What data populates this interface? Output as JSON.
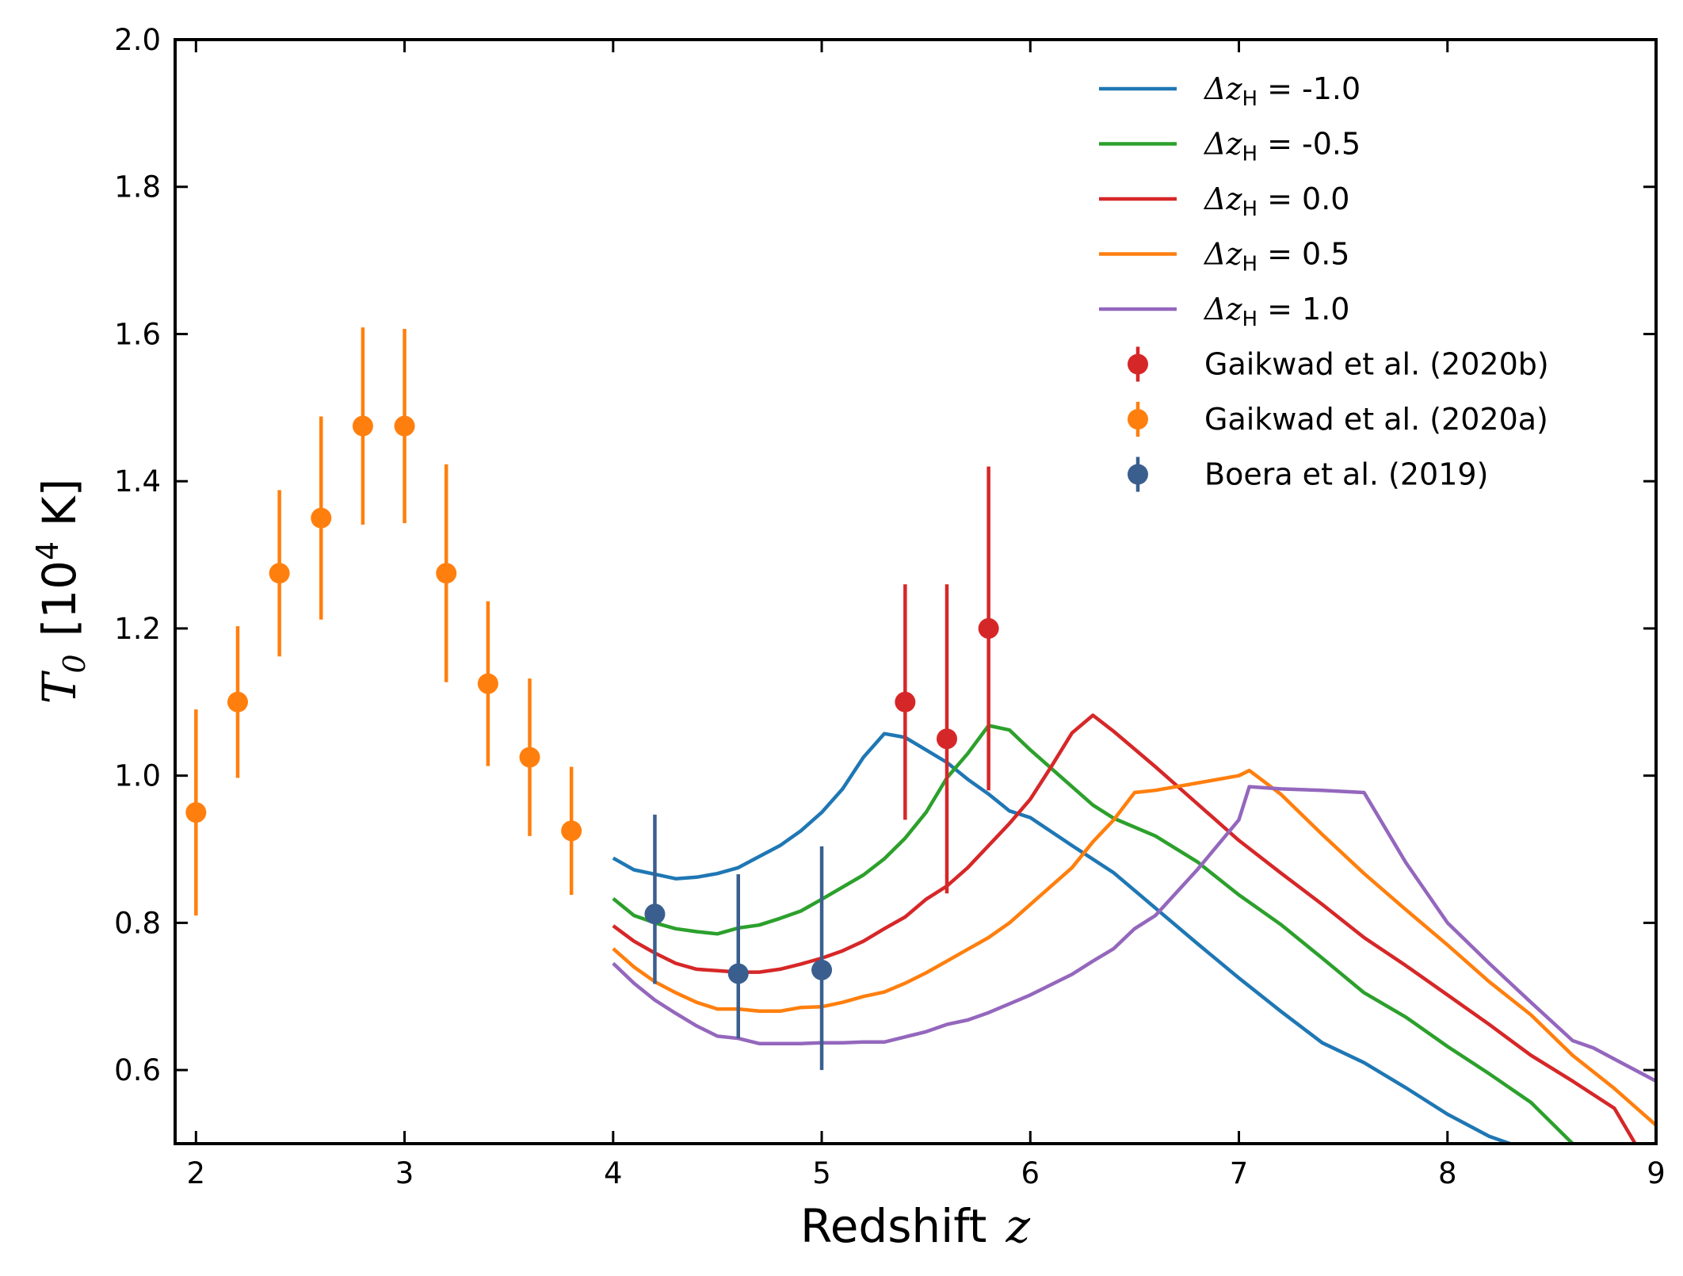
{
  "chart_data": {
    "type": "line",
    "xlabel": "Redshift",
    "xlabel_math": "z",
    "ylabel_math": "T",
    "ylabel_sub": "0",
    "ylabel_unit": "[10",
    "ylabel_exp": "4",
    "ylabel_unit_end": " K]",
    "xlim": [
      1.9,
      9
    ],
    "ylim": [
      0.5,
      2.0
    ],
    "xticks": [
      "2",
      "3",
      "4",
      "5",
      "6",
      "7",
      "8",
      "9"
    ],
    "yticks": [
      "0.6",
      "0.8",
      "1.0",
      "1.2",
      "1.4",
      "1.6",
      "1.8",
      "2.0"
    ],
    "grid": false,
    "legend_position": "top-right",
    "legend_prefix": "Δz",
    "legend_prefix_sub": "H",
    "series": [
      {
        "name": "-1.0",
        "color": "#1f77b4",
        "x": [
          4.0,
          4.1,
          4.2,
          4.3,
          4.4,
          4.5,
          4.6,
          4.7,
          4.8,
          4.9,
          5.0,
          5.1,
          5.2,
          5.3,
          5.4,
          5.5,
          5.6,
          5.7,
          5.8,
          5.9,
          6.0,
          6.2,
          6.4,
          6.6,
          6.8,
          7.0,
          7.2,
          7.4,
          7.6,
          7.8,
          8.0,
          8.2,
          8.3
        ],
        "y": [
          0.888,
          0.872,
          0.866,
          0.86,
          0.862,
          0.867,
          0.875,
          0.89,
          0.905,
          0.925,
          0.95,
          0.982,
          1.025,
          1.057,
          1.052,
          1.035,
          1.018,
          0.995,
          0.975,
          0.952,
          0.943,
          0.905,
          0.868,
          0.82,
          0.772,
          0.725,
          0.68,
          0.637,
          0.61,
          0.576,
          0.54,
          0.51,
          0.5
        ]
      },
      {
        "name": "-0.5",
        "color": "#2ca02c",
        "x": [
          4.0,
          4.1,
          4.2,
          4.3,
          4.4,
          4.5,
          4.6,
          4.7,
          4.8,
          4.9,
          5.0,
          5.2,
          5.3,
          5.4,
          5.5,
          5.6,
          5.7,
          5.8,
          5.9,
          6.0,
          6.2,
          6.3,
          6.4,
          6.6,
          6.8,
          7.0,
          7.2,
          7.4,
          7.6,
          7.8,
          8.0,
          8.2,
          8.4,
          8.6
        ],
        "y": [
          0.833,
          0.81,
          0.8,
          0.792,
          0.788,
          0.785,
          0.793,
          0.797,
          0.806,
          0.816,
          0.832,
          0.865,
          0.887,
          0.915,
          0.95,
          0.997,
          1.03,
          1.068,
          1.062,
          1.035,
          0.985,
          0.96,
          0.942,
          0.918,
          0.883,
          0.838,
          0.798,
          0.752,
          0.705,
          0.672,
          0.632,
          0.595,
          0.556,
          0.5
        ]
      },
      {
        "name": "0.0",
        "color": "#d62728",
        "x": [
          4.0,
          4.1,
          4.2,
          4.3,
          4.4,
          4.5,
          4.6,
          4.7,
          4.8,
          4.9,
          5.0,
          5.1,
          5.2,
          5.3,
          5.4,
          5.5,
          5.6,
          5.7,
          5.8,
          5.9,
          6.0,
          6.1,
          6.2,
          6.3,
          6.4,
          6.6,
          6.8,
          7.0,
          7.2,
          7.4,
          7.6,
          7.8,
          8.0,
          8.2,
          8.4,
          8.6,
          8.8,
          8.9
        ],
        "y": [
          0.796,
          0.775,
          0.759,
          0.745,
          0.737,
          0.735,
          0.733,
          0.733,
          0.737,
          0.744,
          0.752,
          0.762,
          0.775,
          0.792,
          0.808,
          0.832,
          0.85,
          0.875,
          0.905,
          0.935,
          0.968,
          1.012,
          1.058,
          1.082,
          1.06,
          1.012,
          0.962,
          0.912,
          0.868,
          0.825,
          0.78,
          0.742,
          0.702,
          0.662,
          0.62,
          0.585,
          0.548,
          0.5
        ]
      },
      {
        "name": "0.5",
        "color": "#ff7f0e",
        "x": [
          4.0,
          4.1,
          4.2,
          4.3,
          4.4,
          4.5,
          4.6,
          4.7,
          4.8,
          4.9,
          5.0,
          5.1,
          5.2,
          5.3,
          5.4,
          5.5,
          5.6,
          5.7,
          5.8,
          5.9,
          6.0,
          6.2,
          6.3,
          6.4,
          6.5,
          6.6,
          6.8,
          7.0,
          7.05,
          7.2,
          7.4,
          7.6,
          7.8,
          8.0,
          8.2,
          8.4,
          8.6,
          8.8,
          9.0
        ],
        "y": [
          0.765,
          0.74,
          0.72,
          0.705,
          0.692,
          0.683,
          0.683,
          0.68,
          0.68,
          0.685,
          0.686,
          0.692,
          0.7,
          0.706,
          0.718,
          0.732,
          0.748,
          0.764,
          0.78,
          0.8,
          0.825,
          0.875,
          0.91,
          0.94,
          0.977,
          0.98,
          0.99,
          1.0,
          1.007,
          0.975,
          0.92,
          0.867,
          0.818,
          0.77,
          0.72,
          0.675,
          0.62,
          0.575,
          0.525
        ]
      },
      {
        "name": "1.0",
        "color": "#9467bd",
        "x": [
          4.0,
          4.1,
          4.2,
          4.3,
          4.4,
          4.5,
          4.6,
          4.7,
          4.8,
          4.9,
          5.0,
          5.1,
          5.2,
          5.3,
          5.4,
          5.5,
          5.6,
          5.7,
          5.8,
          5.9,
          6.0,
          6.2,
          6.3,
          6.4,
          6.5,
          6.6,
          6.8,
          7.0,
          7.05,
          7.2,
          7.4,
          7.6,
          7.8,
          8.0,
          8.2,
          8.4,
          8.6,
          8.7,
          9.0
        ],
        "y": [
          0.745,
          0.718,
          0.695,
          0.677,
          0.66,
          0.646,
          0.643,
          0.636,
          0.636,
          0.636,
          0.637,
          0.637,
          0.638,
          0.638,
          0.645,
          0.652,
          0.662,
          0.668,
          0.678,
          0.69,
          0.702,
          0.73,
          0.748,
          0.765,
          0.792,
          0.81,
          0.872,
          0.94,
          0.985,
          0.982,
          0.98,
          0.977,
          0.882,
          0.8,
          0.745,
          0.692,
          0.64,
          0.63,
          0.585
        ]
      }
    ],
    "data_series": [
      {
        "name": "Gaikwad et al. (2020b)",
        "color": "#d62728",
        "points": [
          {
            "x": 5.4,
            "y": 1.1,
            "lo": 0.94,
            "hi": 1.26
          },
          {
            "x": 5.6,
            "y": 1.05,
            "lo": 0.84,
            "hi": 1.26
          },
          {
            "x": 5.8,
            "y": 1.2,
            "lo": 0.98,
            "hi": 1.42
          }
        ]
      },
      {
        "name": "Gaikwad et al. (2020a)",
        "color": "#ff7f0e",
        "points": [
          {
            "x": 2.0,
            "y": 0.95,
            "lo": 0.81,
            "hi": 1.09
          },
          {
            "x": 2.2,
            "y": 1.1,
            "lo": 0.997,
            "hi": 1.203
          },
          {
            "x": 2.4,
            "y": 1.275,
            "lo": 1.162,
            "hi": 1.388
          },
          {
            "x": 2.6,
            "y": 1.35,
            "lo": 1.212,
            "hi": 1.488
          },
          {
            "x": 2.8,
            "y": 1.475,
            "lo": 1.341,
            "hi": 1.609
          },
          {
            "x": 3.0,
            "y": 1.475,
            "lo": 1.343,
            "hi": 1.607
          },
          {
            "x": 3.2,
            "y": 1.275,
            "lo": 1.127,
            "hi": 1.423
          },
          {
            "x": 3.4,
            "y": 1.125,
            "lo": 1.013,
            "hi": 1.237
          },
          {
            "x": 3.6,
            "y": 1.025,
            "lo": 0.918,
            "hi": 1.132
          },
          {
            "x": 3.8,
            "y": 0.925,
            "lo": 0.838,
            "hi": 1.012
          }
        ]
      },
      {
        "name": "Boera et al. (2019)",
        "color": "#3a5f8f",
        "points": [
          {
            "x": 4.2,
            "y": 0.812,
            "lo": 0.717,
            "hi": 0.947
          },
          {
            "x": 4.6,
            "y": 0.731,
            "lo": 0.643,
            "hi": 0.866
          },
          {
            "x": 5.0,
            "y": 0.736,
            "lo": 0.6,
            "hi": 0.904
          }
        ]
      }
    ]
  }
}
